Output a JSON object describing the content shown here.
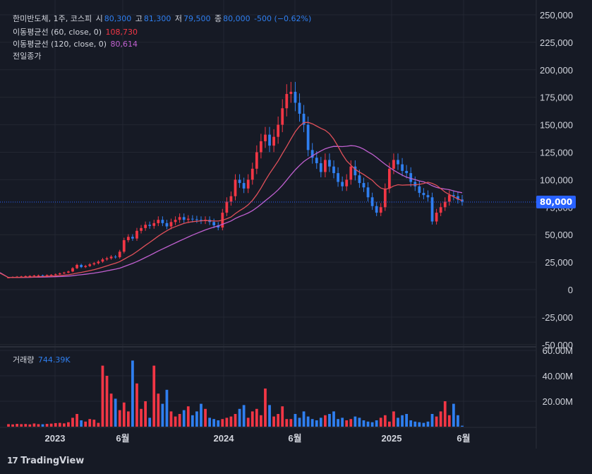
{
  "header": {
    "name": "한미반도체, 1주, 코스피",
    "open_label": "시",
    "open": "80,300",
    "high_label": "고",
    "high": "81,300",
    "low_label": "저",
    "low": "79,500",
    "close_label": "종",
    "close": "80,000",
    "change": "-500 (−0.62%)",
    "ma60_label": "이동평균선 (60, close, 0)",
    "ma60_value": "108,730",
    "ma120_label": "이동평균선 (120, close, 0)",
    "ma120_value": "80,614",
    "prev_close_label": "전일종가",
    "volume_label": "거래량",
    "volume_value": "744.39K"
  },
  "price_badge": "80,000",
  "logo": "TradingView",
  "colors": {
    "up": "#f23645",
    "down": "#2f7ff0",
    "ma60": "#e0505a",
    "ma120": "#c060d0",
    "bg": "#161a25",
    "grid": "#232732"
  },
  "chart_data": {
    "type": "candlestick",
    "title": "한미반도체, 1주, 코스피",
    "x_ticks": [
      "2023",
      "6월",
      "2024",
      "6월",
      "2025",
      "6월"
    ],
    "price_axis": {
      "ylim": [
        -50000,
        250000
      ],
      "ticks": [
        "250,000",
        "225,000",
        "200,000",
        "175,000",
        "150,000",
        "125,000",
        "100,000",
        "75,000",
        "50,000",
        "25,000",
        "0",
        "-25,000",
        "-50,000"
      ]
    },
    "volume_axis": {
      "ylim": [
        0,
        60000000
      ],
      "ticks": [
        "60.00M",
        "40.00M",
        "20.00M"
      ]
    },
    "series": [
      {
        "name": "close",
        "note": "weekly close (approx)",
        "values": [
          11000,
          11500,
          11800,
          12000,
          12300,
          12500,
          12800,
          13000,
          12700,
          13200,
          13500,
          14000,
          14800,
          15500,
          16500,
          19500,
          22500,
          20500,
          21500,
          23000,
          24000,
          25500,
          27500,
          28500,
          30000,
          29500,
          34500,
          45000,
          48000,
          46500,
          53500,
          56000,
          59000,
          58000,
          60500,
          63500,
          60500,
          57500,
          61500,
          63500,
          66000,
          63500,
          64500,
          64000,
          63500,
          62500,
          63500,
          61500,
          58500,
          56500,
          70000,
          80000,
          85000,
          100000,
          97000,
          92000,
          100000,
          110000,
          125000,
          135000,
          141000,
          131000,
          139000,
          150000,
          165000,
          178000,
          180000,
          170000,
          160000,
          150000,
          127000,
          120000,
          115000,
          107000,
          118000,
          112000,
          106000,
          98000,
          94000,
          100000,
          112000,
          104000,
          97000,
          93000,
          84000,
          76000,
          70000,
          75000,
          92000,
          110000,
          118000,
          114000,
          108000,
          106000,
          98000,
          94000,
          88000,
          86000,
          84000,
          62000,
          70000,
          75000,
          80000,
          86000,
          85000,
          82000,
          80000
        ]
      },
      {
        "name": "MA60",
        "values_note": "60-period moving average",
        "last": 108730
      },
      {
        "name": "MA120",
        "values_note": "120-period moving average",
        "last": 80614
      },
      {
        "name": "volume",
        "units": "shares",
        "values": [
          2000000,
          1800000,
          2200000,
          2000000,
          2100000,
          1800000,
          2500000,
          2000000,
          1900000,
          2200000,
          2400000,
          2800000,
          3000000,
          2600000,
          3500000,
          7000000,
          10000000,
          5000000,
          4000000,
          6000000,
          5500000,
          3000000,
          48000000,
          40000000,
          26000000,
          22000000,
          13000000,
          19000000,
          12000000,
          52000000,
          34000000,
          14000000,
          20000000,
          7000000,
          48000000,
          26000000,
          18000000,
          29000000,
          12000000,
          8000000,
          10000000,
          13000000,
          16000000,
          9000000,
          12000000,
          18000000,
          14000000,
          7000000,
          6000000,
          5000000,
          6000000,
          7000000,
          8000000,
          10000000,
          14000000,
          17000000,
          7000000,
          12000000,
          14000000,
          9000000,
          30000000,
          17000000,
          8000000,
          10000000,
          16000000,
          6000000,
          6000000,
          10000000,
          7000000,
          12000000,
          8000000,
          6000000,
          5000000,
          7000000,
          9000000,
          10000000,
          12000000,
          6000000,
          7000000,
          5000000,
          6000000,
          8000000,
          7000000,
          5000000,
          4000000,
          3500000,
          5000000,
          7000000,
          9000000,
          4000000,
          12000000,
          7000000,
          9000000,
          10000000,
          5000000,
          4000000,
          3500000,
          3000000,
          4000000,
          10000000,
          8000000,
          12000000,
          20000000,
          9000000,
          18000000,
          9000000,
          744390
        ]
      }
    ],
    "last_price": 80000
  }
}
